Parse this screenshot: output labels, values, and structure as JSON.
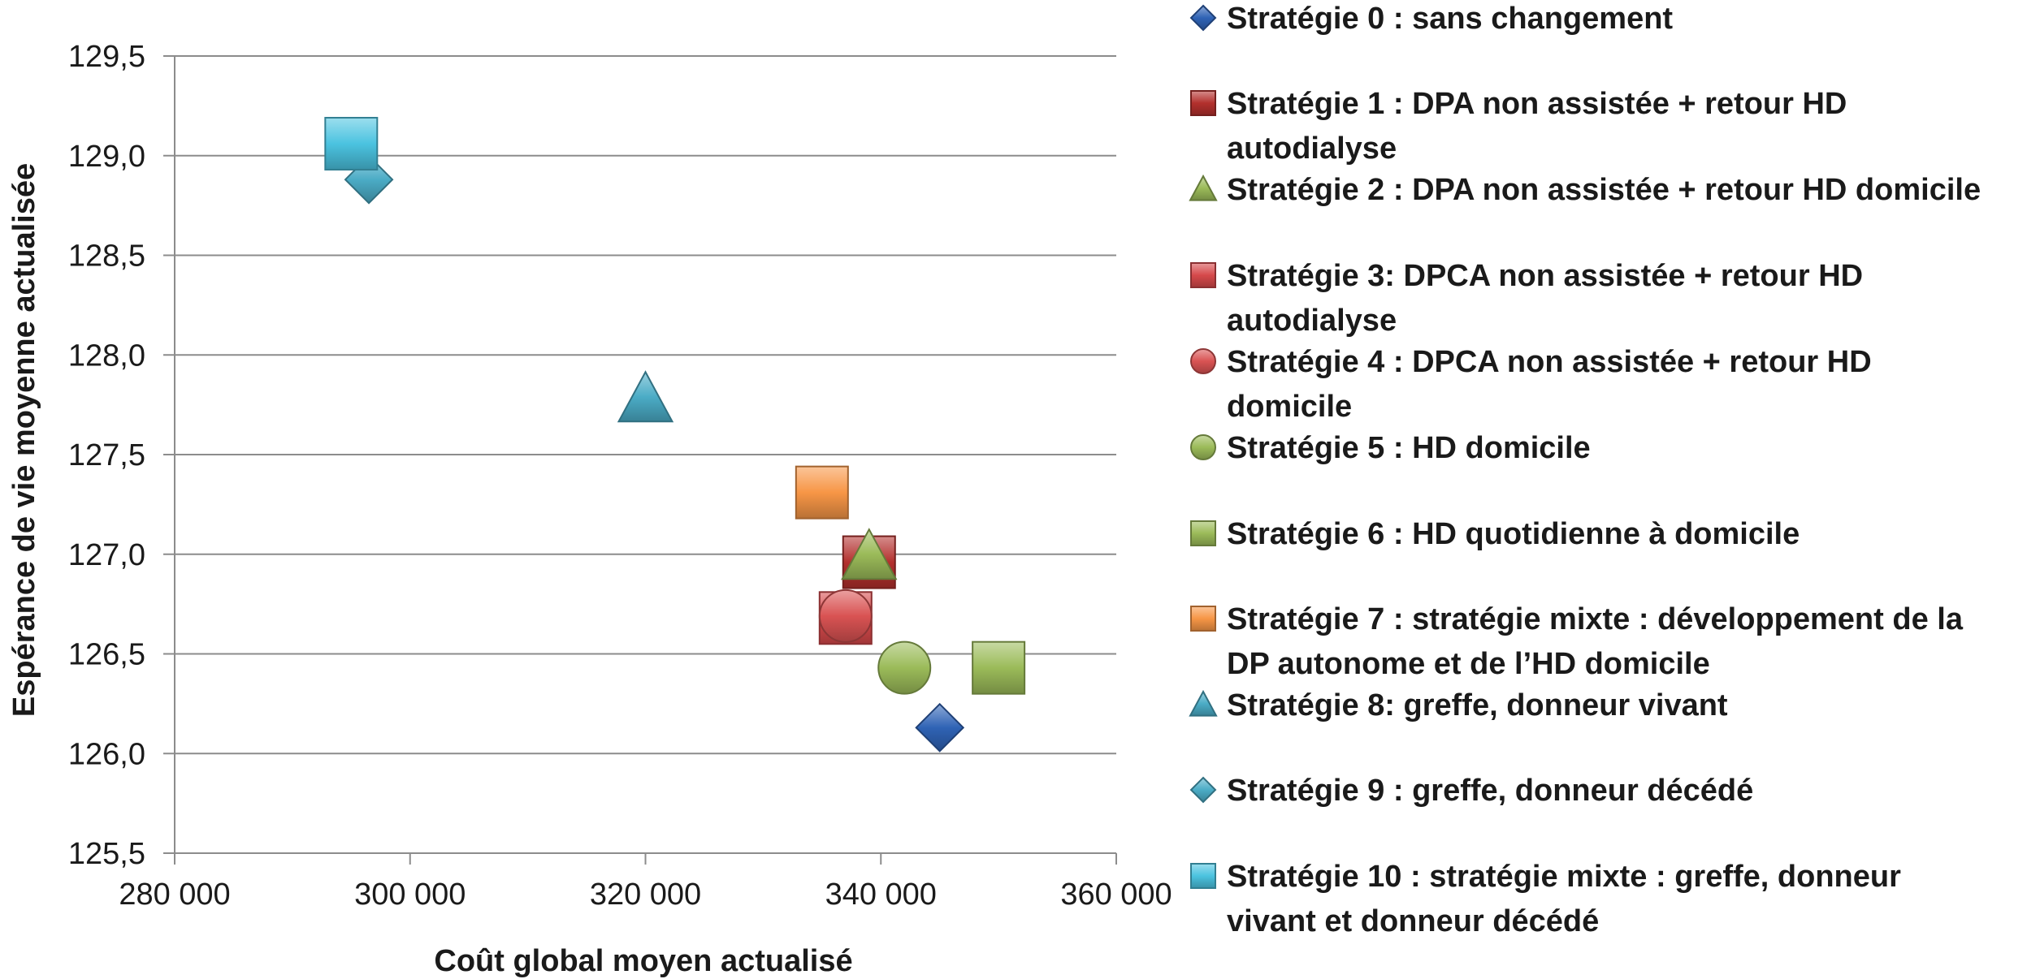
{
  "chart_data": {
    "type": "scatter",
    "xlabel": "Coût global moyen actualisé",
    "ylabel": "Espérance de vie moyenne actualisée",
    "xlim": [
      280000,
      360000
    ],
    "ylim": [
      125.5,
      129.5
    ],
    "x_ticks": [
      280000,
      300000,
      320000,
      340000,
      360000
    ],
    "x_tick_labels": [
      "280 000",
      "300 000",
      "320 000",
      "340 000",
      "360 000"
    ],
    "y_ticks": [
      125.5,
      126.0,
      126.5,
      127.0,
      127.5,
      128.0,
      128.5,
      129.0,
      129.5
    ],
    "y_tick_labels": [
      "125,5",
      "126,0",
      "126,5",
      "127,0",
      "127,5",
      "128,0",
      "128,5",
      "129,0",
      "129,5"
    ],
    "grid": "horizontal",
    "legend_position": "right",
    "series": [
      {
        "name": "Stratégie 0 : sans changement",
        "name_lines": [
          "Stratégie 0 : sans changement"
        ],
        "marker": "diamond",
        "color": "#2f63b5",
        "points": [
          {
            "x": 345000,
            "y": 126.13
          }
        ]
      },
      {
        "name": "Stratégie 1 : DPA non assistée + retour HD autodialyse",
        "name_lines": [
          "Stratégie 1 : DPA non assistée + retour HD",
          "autodialyse"
        ],
        "marker": "square",
        "color": "#b3302d",
        "points": [
          {
            "x": 339000,
            "y": 126.96
          }
        ]
      },
      {
        "name": "Stratégie 2 : DPA non assistée + retour HD domicile",
        "name_lines": [
          "Stratégie 2 : DPA non assistée + retour HD domicile"
        ],
        "marker": "triangle",
        "color": "#9bbb59",
        "points": [
          {
            "x": 339000,
            "y": 126.99
          }
        ]
      },
      {
        "name": "Stratégie 3: DPCA non assistée + retour HD autodialyse",
        "name_lines": [
          "Stratégie 3: DPCA non assistée + retour HD",
          "autodialyse"
        ],
        "marker": "square",
        "color": "#d6494b",
        "points": [
          {
            "x": 337000,
            "y": 126.68
          }
        ]
      },
      {
        "name": "Stratégie 4 : DPCA non assistée + retour HD domicile",
        "name_lines": [
          "Stratégie 4 : DPCA non assistée + retour HD",
          "domicile"
        ],
        "marker": "circle",
        "color": "#d95353",
        "points": [
          {
            "x": 337000,
            "y": 126.69
          }
        ]
      },
      {
        "name": "Stratégie 5 : HD domicile",
        "name_lines": [
          "Stratégie 5 : HD domicile"
        ],
        "marker": "circle",
        "color": "#9bbb59",
        "points": [
          {
            "x": 342000,
            "y": 126.43
          }
        ]
      },
      {
        "name": "Stratégie 6 :  HD quotidienne à  domicile",
        "name_lines": [
          "Stratégie 6 :  HD quotidienne à  domicile"
        ],
        "marker": "square",
        "color": "#9bbb59",
        "points": [
          {
            "x": 350000,
            "y": 126.43
          }
        ]
      },
      {
        "name": "Stratégie 7 : stratégie mixte : développement de la DP autonome et de l’HD domicile",
        "name_lines": [
          "Stratégie 7 : stratégie mixte : développement de la",
          "DP autonome et de l’HD domicile"
        ],
        "marker": "square",
        "color": "#f79646",
        "points": [
          {
            "x": 335000,
            "y": 127.31
          }
        ]
      },
      {
        "name": "Stratégie 8: greffe, donneur vivant",
        "name_lines": [
          "Stratégie 8: greffe, donneur vivant"
        ],
        "marker": "triangle",
        "color": "#4bacc6",
        "points": [
          {
            "x": 320000,
            "y": 127.78
          }
        ]
      },
      {
        "name": "Stratégie 9 : greffe, donneur décédé",
        "name_lines": [
          "Stratégie 9 : greffe, donneur décédé"
        ],
        "marker": "diamond",
        "color": "#4bacc6",
        "points": [
          {
            "x": 296500,
            "y": 128.88
          }
        ]
      },
      {
        "name": "Stratégie 10 : stratégie mixte : greffe, donneur vivant et donneur décédé",
        "name_lines": [
          "Stratégie 10 : stratégie mixte : greffe, donneur",
          "vivant et donneur décédé"
        ],
        "marker": "square",
        "color": "#4bc3e0",
        "points": [
          {
            "x": 295000,
            "y": 129.06
          }
        ]
      }
    ]
  }
}
